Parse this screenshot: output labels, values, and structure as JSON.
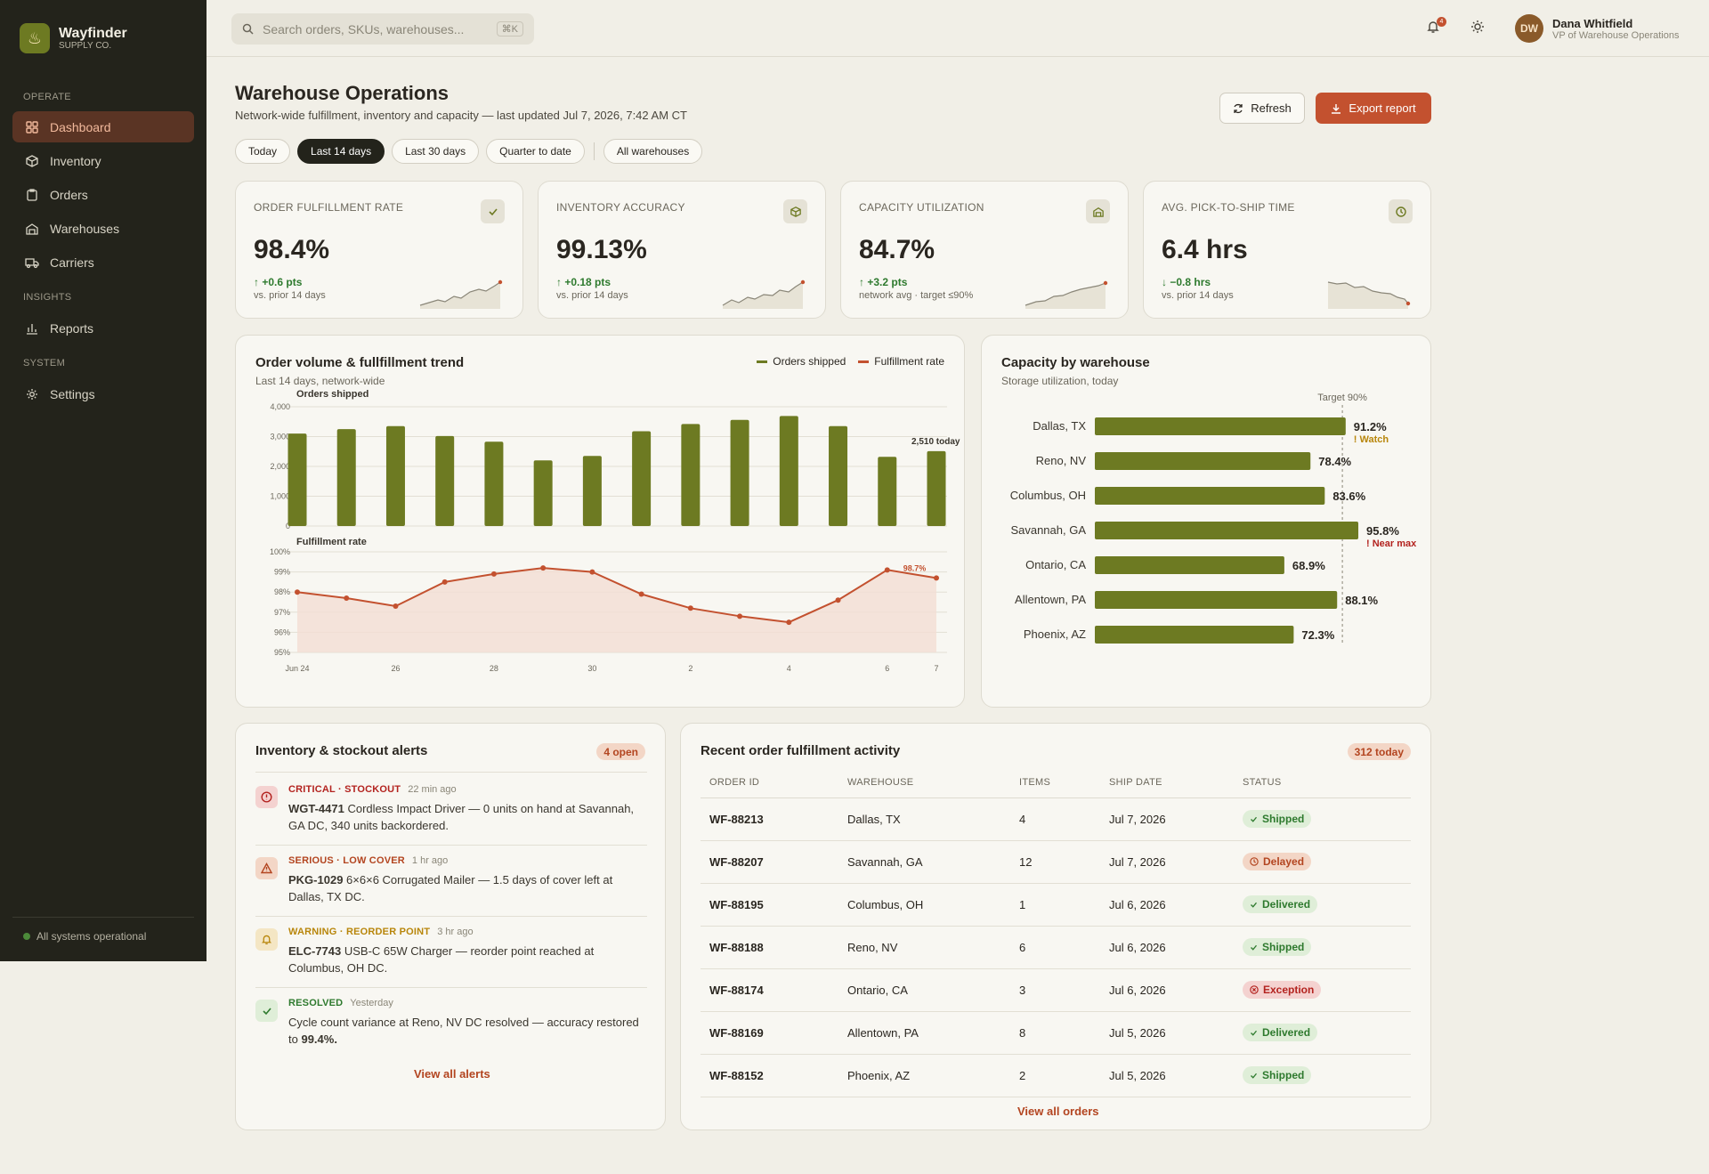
{
  "brand": {
    "name": "Wayfinder",
    "sub": "SUPPLY CO."
  },
  "nav": {
    "sections": [
      "OPERATE",
      "INSIGHTS",
      "SYSTEM"
    ],
    "items": [
      {
        "label": "Dashboard",
        "icon": "grid-icon",
        "active": true
      },
      {
        "label": "Inventory",
        "icon": "cube-icon"
      },
      {
        "label": "Orders",
        "icon": "clipboard-icon"
      },
      {
        "label": "Warehouses",
        "icon": "warehouse-icon"
      },
      {
        "label": "Carriers",
        "icon": "truck-icon"
      },
      {
        "label": "Reports",
        "icon": "bar-chart-icon"
      },
      {
        "label": "Settings",
        "icon": "gear-icon"
      }
    ],
    "status": "All systems operational"
  },
  "search": {
    "placeholder": "Search orders, SKUs, warehouses...",
    "shortcut": "⌘K"
  },
  "notifications": {
    "count": "4"
  },
  "user": {
    "initials": "DW",
    "name": "Dana Whitfield",
    "role": "VP of Warehouse Operations"
  },
  "page": {
    "title": "Warehouse Operations",
    "subtitle": "Network-wide fulfillment, inventory and capacity — last updated Jul 7, 2026, 7:42 AM CT",
    "refresh": "Refresh",
    "export": "Export report"
  },
  "filters": [
    "Today",
    "Last 14 days",
    "Last 30 days",
    "Quarter to date"
  ],
  "filter_active": "Last 14 days",
  "warehouse_filter": "All warehouses",
  "kpis": [
    {
      "label": "ORDER FULFILLMENT RATE",
      "icon": "check-icon",
      "value": "98.4%",
      "delta": "+0.6 pts",
      "dir": "up",
      "note": "vs. prior 14 days"
    },
    {
      "label": "INVENTORY ACCURACY",
      "icon": "cube-icon",
      "value": "99.13%",
      "delta": "+0.18 pts",
      "dir": "up",
      "note": "vs. prior 14 days"
    },
    {
      "label": "CAPACITY UTILIZATION",
      "icon": "warehouse-icon",
      "value": "84.7%",
      "delta": "+3.2 pts",
      "dir": "up",
      "note": "network avg · target ≤90%"
    },
    {
      "label": "AVG. PICK-TO-SHIP TIME",
      "icon": "clock-icon",
      "value": "6.4 hrs",
      "delta": "−0.8 hrs",
      "dir": "down",
      "note": "vs. prior 14 days"
    }
  ],
  "colors": {
    "olive": "#6d7a22",
    "rust": "#c3512f",
    "amber": "#b8860b"
  },
  "trend": {
    "title": "Order volume & fullfillment trend",
    "subtitle": "Last 14 days, network-wide"
  },
  "capacity": {
    "title": "Capacity by warehouse",
    "subtitle": "Storage utilization, today"
  },
  "chart_data": [
    {
      "type": "bar",
      "subtitle": "Orders shipped",
      "series": [
        {
          "name": "Orders shipped",
          "values": [
            3100,
            3250,
            3350,
            3020,
            2830,
            2200,
            2350,
            3180,
            3420,
            3560,
            3690,
            3350,
            2320,
            2510
          ]
        }
      ],
      "x": [
        "Jun 24",
        "Jun 25",
        "Jun 26",
        "Jun 27",
        "Jun 28",
        "Jun 29",
        "Jun 30",
        "Jul 1",
        "Jul 2",
        "Jul 3",
        "Jul 4",
        "Jul 5",
        "Jul 6",
        "Jul 7"
      ],
      "xticks": [
        "Jun 24",
        "26",
        "28",
        "30",
        "2",
        "4",
        "6",
        "7"
      ],
      "ylim": [
        0,
        4000
      ],
      "yticks": [
        "4,000",
        "3,000",
        "2,000",
        "1,000",
        "0"
      ],
      "annotation": "2,510 today"
    },
    {
      "type": "line",
      "subtitle": "Fulfillment rate",
      "series": [
        {
          "name": "Fulfillment rate",
          "values": [
            98.0,
            97.7,
            97.3,
            98.5,
            98.9,
            99.2,
            99.0,
            97.9,
            97.2,
            96.8,
            96.5,
            97.6,
            99.1,
            98.7
          ]
        }
      ],
      "x": [
        "Jun 24",
        "Jun 25",
        "Jun 26",
        "Jun 27",
        "Jun 28",
        "Jun 29",
        "Jun 30",
        "Jul 1",
        "Jul 2",
        "Jul 3",
        "Jul 4",
        "Jul 5",
        "Jul 6",
        "Jul 7"
      ],
      "ylim": [
        95,
        100
      ],
      "yticks": [
        "100%",
        "99%",
        "98%",
        "97%",
        "96%",
        "95%"
      ],
      "annotation": "98.7%"
    },
    {
      "type": "bar",
      "orientation": "horizontal",
      "categories": [
        "Dallas, TX",
        "Reno, NV",
        "Columbus, OH",
        "Savannah, GA",
        "Ontario, CA",
        "Allentown, PA",
        "Phoenix, AZ"
      ],
      "values": [
        91.2,
        78.4,
        83.6,
        95.8,
        68.9,
        88.1,
        72.3
      ],
      "labels": [
        "91.2%",
        "78.4%",
        "83.6%",
        "95.8%",
        "68.9%",
        "88.1%",
        "72.3%"
      ],
      "flags": {
        "Dallas, TX": "! Watch",
        "Savannah, GA": "! Near max"
      },
      "target_label": "Target 90%",
      "target": 90
    }
  ],
  "alerts": {
    "title": "Inventory & stockout alerts",
    "count": "4 open",
    "items": [
      {
        "level": "CRITICAL · STOCKOUT",
        "time": "22 min ago",
        "sku": "WGT-4471",
        "text": "Cordless Impact Driver — 0 units on hand at Savannah, GA DC, 340 units backordered.",
        "icon": "alert-circle-icon",
        "color": "#b3231f",
        "bg": "#f4d2d0"
      },
      {
        "level": "SERIOUS · LOW COVER",
        "time": "1 hr ago",
        "sku": "PKG-1029",
        "text": "6×6×6 Corrugated Mailer — 1.5 days of cover left at Dallas, TX DC.",
        "icon": "warning-triangle-icon",
        "color": "#b34520",
        "bg": "#f3d6c6"
      },
      {
        "level": "WARNING · REORDER POINT",
        "time": "3 hr ago",
        "sku": "ELC-7743",
        "text": "USB-C 65W Charger — reorder point reached at Columbus, OH DC.",
        "icon": "bell-icon",
        "color": "#b8860b",
        "bg": "#f4e6c4"
      },
      {
        "level": "RESOLVED",
        "time": "Yesterday",
        "sku": "",
        "text": "Cycle count variance at Reno, NV DC resolved — accuracy restored to",
        "strong": "99.4%.",
        "icon": "check-icon",
        "color": "#2e7a2e",
        "bg": "#dfeed8"
      }
    ],
    "link": "View all alerts"
  },
  "orders": {
    "title": "Recent order fulfillment activity",
    "count": "312 today",
    "columns": [
      "ORDER ID",
      "WAREHOUSE",
      "ITEMS",
      "SHIP DATE",
      "STATUS"
    ],
    "rows": [
      {
        "id": "WF-88213",
        "wh": "Dallas, TX",
        "items": "4",
        "date": "Jul 7, 2026",
        "status": "Shipped",
        "kind": "ship"
      },
      {
        "id": "WF-88207",
        "wh": "Savannah, GA",
        "items": "12",
        "date": "Jul 7, 2026",
        "status": "Delayed",
        "kind": "del"
      },
      {
        "id": "WF-88195",
        "wh": "Columbus, OH",
        "items": "1",
        "date": "Jul 6, 2026",
        "status": "Delivered",
        "kind": "ship"
      },
      {
        "id": "WF-88188",
        "wh": "Reno, NV",
        "items": "6",
        "date": "Jul 6, 2026",
        "status": "Shipped",
        "kind": "ship"
      },
      {
        "id": "WF-88174",
        "wh": "Ontario, CA",
        "items": "3",
        "date": "Jul 6, 2026",
        "status": "Exception",
        "kind": "exc"
      },
      {
        "id": "WF-88169",
        "wh": "Allentown, PA",
        "items": "8",
        "date": "Jul 5, 2026",
        "status": "Delivered",
        "kind": "ship"
      },
      {
        "id": "WF-88152",
        "wh": "Phoenix, AZ",
        "items": "2",
        "date": "Jul 5, 2026",
        "status": "Shipped",
        "kind": "ship"
      }
    ],
    "link": "View all orders"
  }
}
